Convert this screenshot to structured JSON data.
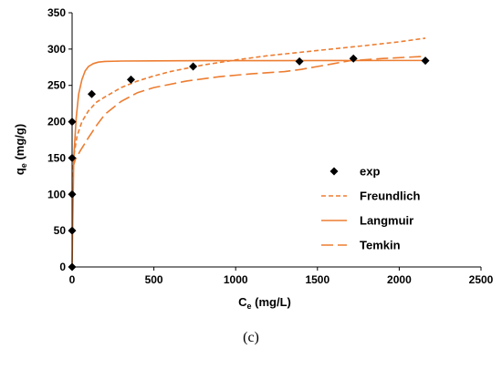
{
  "chart_data": {
    "type": "scatter",
    "x_ticks": [
      0,
      500,
      1000,
      1500,
      2000,
      2500
    ],
    "y_ticks": [
      0,
      50,
      100,
      150,
      200,
      250,
      300,
      350
    ],
    "xlim": [
      0,
      2500
    ],
    "ylim": [
      0,
      350
    ],
    "xlabel": {
      "main": "C",
      "sub": "e",
      "rest": " (mg/L)"
    },
    "ylabel": {
      "main": "q",
      "sub": "e",
      "rest": " (mg/g)"
    },
    "grid": "none",
    "legend_position": "center-right",
    "caption": "(c)",
    "series": [
      {
        "name": "exp",
        "kind": "markers",
        "color": "#000000",
        "x": [
          0,
          0,
          0,
          0,
          0,
          120,
          360,
          740,
          1390,
          1720,
          2160
        ],
        "y": [
          0,
          50,
          100,
          150,
          200,
          238,
          258,
          276,
          283,
          287,
          284
        ]
      },
      {
        "name": "Freundlich",
        "kind": "line",
        "style": "short-dash",
        "color": "#ED7D31",
        "x": [
          2,
          10,
          30,
          60,
          100,
          150,
          200,
          300,
          400,
          500,
          600,
          800,
          1000,
          1200,
          1500,
          1800,
          2000,
          2160
        ],
        "y": [
          124,
          152,
          180,
          200,
          215,
          227,
          234,
          247,
          256,
          263,
          269,
          278,
          285,
          291,
          298,
          305,
          310,
          315
        ]
      },
      {
        "name": "Langmuir",
        "kind": "line",
        "style": "solid",
        "color": "#ED7D31",
        "x": [
          0,
          10,
          25,
          40,
          60,
          80,
          100,
          130,
          160,
          200,
          300,
          500,
          800,
          1200,
          1600,
          2000,
          2160
        ],
        "y": [
          0,
          150,
          205,
          238,
          258,
          270,
          276,
          280,
          282,
          283,
          283.5,
          283.8,
          284,
          284,
          284.2,
          284.3,
          284.3
        ]
      },
      {
        "name": "Temkin",
        "kind": "line",
        "style": "long-dash",
        "color": "#ED7D31",
        "x": [
          2,
          20,
          50,
          100,
          150,
          200,
          300,
          400,
          500,
          700,
          900,
          1100,
          1300,
          1400,
          1500,
          1600,
          1700,
          1900,
          2160
        ],
        "y": [
          135,
          148,
          160,
          178,
          195,
          210,
          228,
          240,
          247,
          256,
          262,
          266,
          269,
          272,
          276,
          280,
          284,
          287,
          290
        ]
      }
    ]
  }
}
